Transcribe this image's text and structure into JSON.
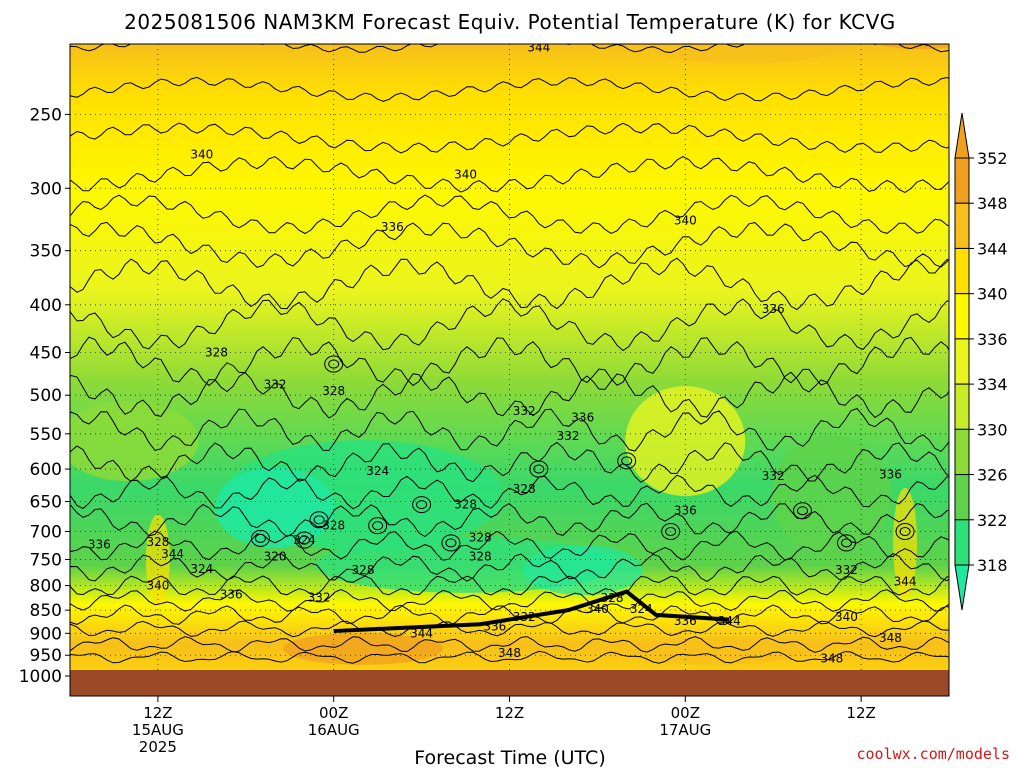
{
  "colors": {
    "c318": "#20e8a0",
    "c322": "#2ee07a",
    "c326": "#5ed24a",
    "c330": "#8cda38",
    "c334": "#c8ec28",
    "c336": "#eaf41e",
    "c340": "#fff800",
    "c344": "#ffe000",
    "c348": "#f7bf1c",
    "c352": "#f0a020",
    "ground": "#9b4a28"
  },
  "chart_data": {
    "type": "heatmap",
    "title": "2025081506 NAM3KM Forecast Equiv. Potential Temperature (K) for KCVG",
    "xlabel": "Forecast Time (UTC)",
    "ylabel": "",
    "variable_units": "K",
    "y_scale": "log-pressure",
    "y_direction": "decreasing-upward",
    "ylim": [
      1000,
      200
    ],
    "y_ticks": [
      250,
      300,
      350,
      400,
      450,
      500,
      550,
      600,
      650,
      700,
      750,
      800,
      850,
      900,
      950,
      1000
    ],
    "x_ticks": [
      {
        "hour": 12,
        "lines": [
          "12Z",
          "15AUG",
          "2025"
        ]
      },
      {
        "hour": 24,
        "lines": [
          "00Z",
          "16AUG"
        ]
      },
      {
        "hour": 36,
        "lines": [
          "12Z"
        ]
      },
      {
        "hour": 48,
        "lines": [
          "00Z",
          "17AUG"
        ]
      },
      {
        "hour": 60,
        "lines": [
          "12Z"
        ]
      }
    ],
    "xlim": [
      6,
      66
    ],
    "grid": true,
    "colorbar": {
      "levels": [
        318,
        322,
        326,
        330,
        334,
        336,
        340,
        344,
        348,
        352
      ],
      "labels": [
        "352",
        "348",
        "344",
        "340",
        "336",
        "334",
        "330",
        "326",
        "322",
        "318"
      ],
      "extend": "both",
      "position": "right"
    },
    "contour_labels": [
      {
        "text": "344",
        "hour": 38.0,
        "p": 212
      },
      {
        "text": "348",
        "hour": 55.0,
        "p": 208
      },
      {
        "text": "340",
        "hour": 15.0,
        "p": 276
      },
      {
        "text": "340",
        "hour": 33.0,
        "p": 290
      },
      {
        "text": "336",
        "hour": 28.0,
        "p": 330
      },
      {
        "text": "340",
        "hour": 48.0,
        "p": 325
      },
      {
        "text": "336",
        "hour": 54.0,
        "p": 404
      },
      {
        "text": "328",
        "hour": 16.0,
        "p": 450
      },
      {
        "text": "332",
        "hour": 20.0,
        "p": 487
      },
      {
        "text": "328",
        "hour": 24.0,
        "p": 495
      },
      {
        "text": "332",
        "hour": 37.0,
        "p": 520
      },
      {
        "text": "336",
        "hour": 41.0,
        "p": 528
      },
      {
        "text": "332",
        "hour": 40.0,
        "p": 553
      },
      {
        "text": "324",
        "hour": 27.0,
        "p": 603
      },
      {
        "text": "328",
        "hour": 37.0,
        "p": 630
      },
      {
        "text": "332",
        "hour": 54.0,
        "p": 610
      },
      {
        "text": "336",
        "hour": 62.0,
        "p": 608
      },
      {
        "text": "328",
        "hour": 33.0,
        "p": 655
      },
      {
        "text": "336",
        "hour": 48.0,
        "p": 665
      },
      {
        "text": "328",
        "hour": 24.0,
        "p": 690
      },
      {
        "text": "324",
        "hour": 22.0,
        "p": 715
      },
      {
        "text": "328",
        "hour": 34.0,
        "p": 710
      },
      {
        "text": "336",
        "hour": 8.0,
        "p": 723
      },
      {
        "text": "328",
        "hour": 12.0,
        "p": 718
      },
      {
        "text": "344",
        "hour": 13.0,
        "p": 740
      },
      {
        "text": "320",
        "hour": 20.0,
        "p": 745
      },
      {
        "text": "328",
        "hour": 34.0,
        "p": 745
      },
      {
        "text": "324",
        "hour": 15.0,
        "p": 768
      },
      {
        "text": "328",
        "hour": 26.0,
        "p": 770
      },
      {
        "text": "340",
        "hour": 12.0,
        "p": 800
      },
      {
        "text": "336",
        "hour": 17.0,
        "p": 818
      },
      {
        "text": "332",
        "hour": 23.0,
        "p": 824
      },
      {
        "text": "328",
        "hour": 43.0,
        "p": 825
      },
      {
        "text": "340",
        "hour": 42.0,
        "p": 848
      },
      {
        "text": "324",
        "hour": 45.0,
        "p": 848
      },
      {
        "text": "332",
        "hour": 37.0,
        "p": 865
      },
      {
        "text": "336",
        "hour": 35.0,
        "p": 885
      },
      {
        "text": "344",
        "hour": 30.0,
        "p": 900
      },
      {
        "text": "336",
        "hour": 48.0,
        "p": 873
      },
      {
        "text": "344",
        "hour": 51.0,
        "p": 873
      },
      {
        "text": "340",
        "hour": 59.0,
        "p": 865
      },
      {
        "text": "332",
        "hour": 59.0,
        "p": 770
      },
      {
        "text": "344",
        "hour": 63.0,
        "p": 792
      },
      {
        "text": "348",
        "hour": 58.0,
        "p": 958
      },
      {
        "text": "348",
        "hour": 36.0,
        "p": 945
      },
      {
        "text": "348",
        "hour": 62.0,
        "p": 910
      }
    ]
  },
  "credit": "coolwx.com/models"
}
